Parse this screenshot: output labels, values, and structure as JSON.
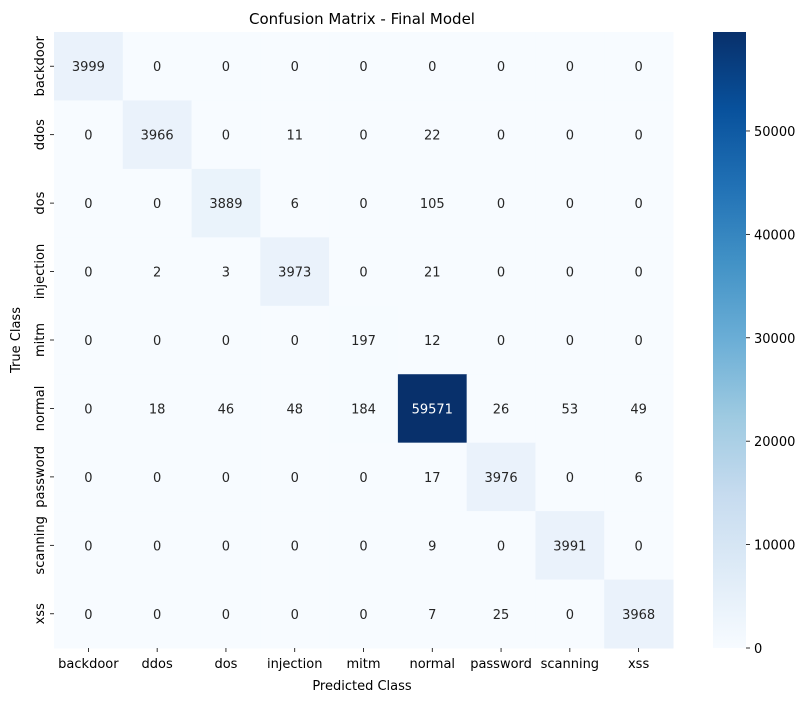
{
  "chart_data": {
    "type": "heatmap",
    "title": "Confusion Matrix - Final Model",
    "xlabel": "Predicted Class",
    "ylabel": "True Class",
    "x_categories": [
      "backdoor",
      "ddos",
      "dos",
      "injection",
      "mitm",
      "normal",
      "password",
      "scanning",
      "xss"
    ],
    "y_categories": [
      "backdoor",
      "ddos",
      "dos",
      "injection",
      "mitm",
      "normal",
      "password",
      "scanning",
      "xss"
    ],
    "values": [
      [
        3999,
        0,
        0,
        0,
        0,
        0,
        0,
        0,
        0
      ],
      [
        0,
        3966,
        0,
        11,
        0,
        22,
        0,
        0,
        0
      ],
      [
        0,
        0,
        3889,
        6,
        0,
        105,
        0,
        0,
        0
      ],
      [
        0,
        2,
        3,
        3973,
        0,
        21,
        0,
        0,
        0
      ],
      [
        0,
        0,
        0,
        0,
        197,
        12,
        0,
        0,
        0
      ],
      [
        0,
        18,
        46,
        48,
        184,
        59571,
        26,
        53,
        49
      ],
      [
        0,
        0,
        0,
        0,
        0,
        17,
        3976,
        0,
        6
      ],
      [
        0,
        0,
        0,
        0,
        0,
        9,
        0,
        3991,
        0
      ],
      [
        0,
        0,
        0,
        0,
        0,
        7,
        25,
        0,
        3968
      ]
    ],
    "colormap": "Blues",
    "colorbar": {
      "range": [
        0,
        59571
      ],
      "ticks": [
        0,
        10000,
        20000,
        30000,
        40000,
        50000
      ],
      "tick_labels": [
        "0",
        "10000",
        "20000",
        "30000",
        "40000",
        "50000"
      ]
    },
    "annotations": "cell values shown in each cell",
    "grid": false,
    "legend": "colorbar-right"
  }
}
